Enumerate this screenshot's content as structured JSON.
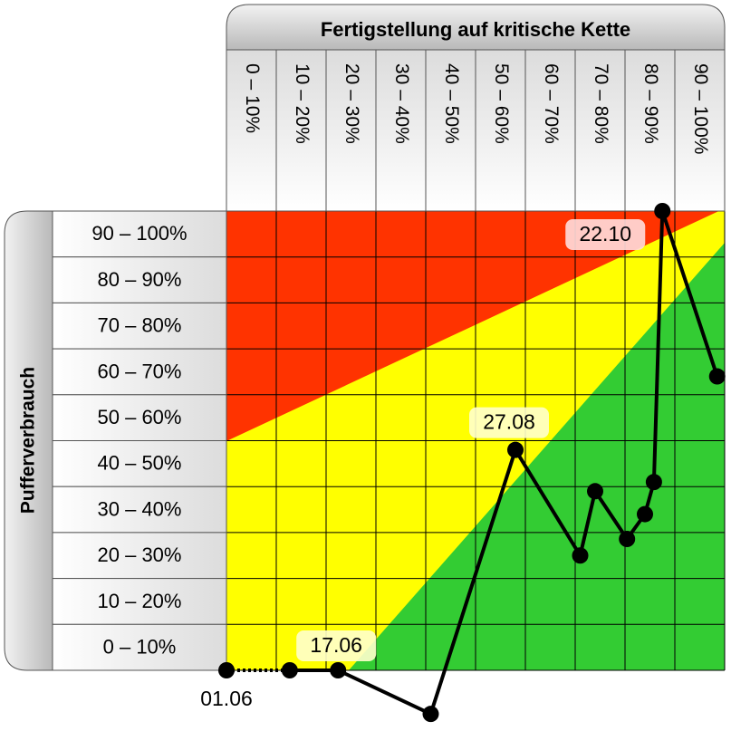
{
  "chart_data": {
    "type": "line",
    "title": "Fertigstellung auf kritische Kette",
    "y_label": "Pufferverbrauch",
    "x_categories": [
      "0 – 10%",
      "10 – 20%",
      "20 – 30%",
      "30 – 40%",
      "40 – 50%",
      "50 – 60%",
      "60 – 70%",
      "70 – 80%",
      "80 – 90%",
      "90 – 100%"
    ],
    "y_categories": [
      "90 – 100%",
      "80 – 90%",
      "70 – 80%",
      "60 – 70%",
      "50 – 60%",
      "40 – 50%",
      "30 – 40%",
      "20 – 30%",
      "10 – 20%",
      "0 – 10%"
    ],
    "xlim": [
      0,
      100
    ],
    "ylim": [
      0,
      100
    ],
    "xticks": [
      0,
      10,
      20,
      30,
      40,
      50,
      60,
      70,
      80,
      90,
      100
    ],
    "yticks": [
      0,
      10,
      20,
      30,
      40,
      50,
      60,
      70,
      80,
      90,
      100
    ],
    "grid": true,
    "first_segment_dotted": true,
    "series": [
      {
        "color": "#000000",
        "x": [
          0,
          12.7,
          22.4,
          41,
          58,
          71,
          74,
          80.4,
          84,
          85.8,
          87.5,
          98.5
        ],
        "values": [
          0,
          0,
          0,
          -9.5,
          48,
          25,
          39,
          28.6,
          34,
          41,
          100,
          64
        ],
        "point_labels": [
          "01.06",
          null,
          "17.06",
          null,
          "27.08",
          null,
          null,
          null,
          null,
          null,
          "22.10",
          null
        ]
      }
    ]
  }
}
